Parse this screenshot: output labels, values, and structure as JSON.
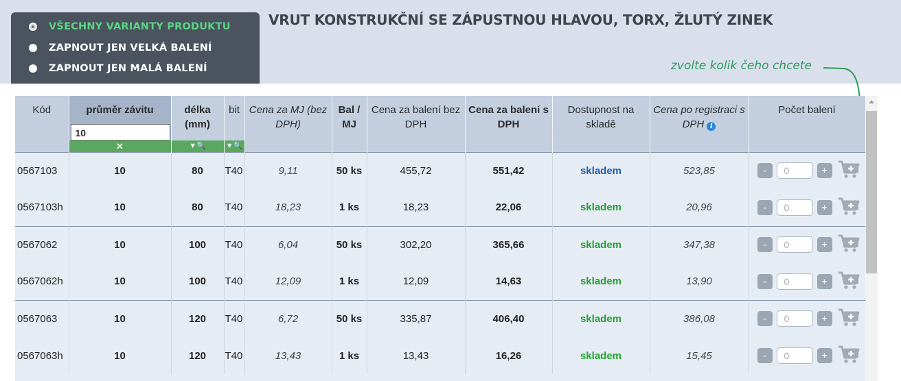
{
  "filters": {
    "options": [
      {
        "label": "VŠECHNY VARIANTY PRODUKTU",
        "selected": true
      },
      {
        "label": "ZAPNOUT JEN VELKÁ BALENÍ",
        "selected": false
      },
      {
        "label": "ZAPNOUT JEN MALÁ BALENÍ",
        "selected": false
      }
    ]
  },
  "product": {
    "title": "VRUT KONSTRUKČNÍ SE ZÁPUSTNOU HLAVOU, TORX, ŽLUTÝ ZINEK"
  },
  "hint": {
    "text": "zvolte kolik  čeho chcete"
  },
  "table": {
    "headers": {
      "code": "Kód",
      "diameter": "průměr závitu",
      "length": "délka (mm)",
      "bit": "bit",
      "price_mj": "Cena za MJ (bez DPH)",
      "pack": "Bal / MJ",
      "price_pack_excl": "Cena za balení bez DPH",
      "price_pack_incl": "Cena za balení s DPH",
      "stock": "Dostupnost na skladě",
      "price_reg": "Cena po registraci s DPH",
      "qty": "Počet balení"
    },
    "diameter_filter_value": "10",
    "clear_filter": "✕",
    "filter_icon": "▼🔍",
    "info_icon": "i",
    "qty_placeholder": "0",
    "rows": [
      {
        "code": "0567103",
        "diameter": "10",
        "length": "80",
        "bit": "T40",
        "price_mj": "9,11",
        "pack": "50 ks",
        "price_pack_excl": "455,72",
        "price_pack_incl": "551,42",
        "stock": "skladem",
        "stock_color": "blue",
        "price_reg": "523,85"
      },
      {
        "code": "0567103h",
        "diameter": "10",
        "length": "80",
        "bit": "T40",
        "price_mj": "18,23",
        "pack": "1 ks",
        "price_pack_excl": "18,23",
        "price_pack_incl": "22,06",
        "stock": "skladem",
        "stock_color": "green",
        "price_reg": "20,96"
      },
      {
        "code": "0567062",
        "diameter": "10",
        "length": "100",
        "bit": "T40",
        "price_mj": "6,04",
        "pack": "50 ks",
        "price_pack_excl": "302,20",
        "price_pack_incl": "365,66",
        "stock": "skladem",
        "stock_color": "green",
        "price_reg": "347,38"
      },
      {
        "code": "0567062h",
        "diameter": "10",
        "length": "100",
        "bit": "T40",
        "price_mj": "12,09",
        "pack": "1 ks",
        "price_pack_excl": "12,09",
        "price_pack_incl": "14,63",
        "stock": "skladem",
        "stock_color": "green",
        "price_reg": "13,90"
      },
      {
        "code": "0567063",
        "diameter": "10",
        "length": "120",
        "bit": "T40",
        "price_mj": "6,72",
        "pack": "50 ks",
        "price_pack_excl": "335,87",
        "price_pack_incl": "406,40",
        "stock": "skladem",
        "stock_color": "green",
        "price_reg": "386,08"
      },
      {
        "code": "0567063h",
        "diameter": "10",
        "length": "120",
        "bit": "T40",
        "price_mj": "13,43",
        "pack": "1 ks",
        "price_pack_excl": "13,43",
        "price_pack_incl": "16,26",
        "stock": "skladem",
        "stock_color": "green",
        "price_reg": "15,45"
      }
    ]
  },
  "colors": {
    "panel": "#4b535e",
    "selected_option": "#59d684",
    "stock_blue": "#1d5fb0",
    "stock_green": "#22a233",
    "filter_bar": "#5aa85f"
  }
}
